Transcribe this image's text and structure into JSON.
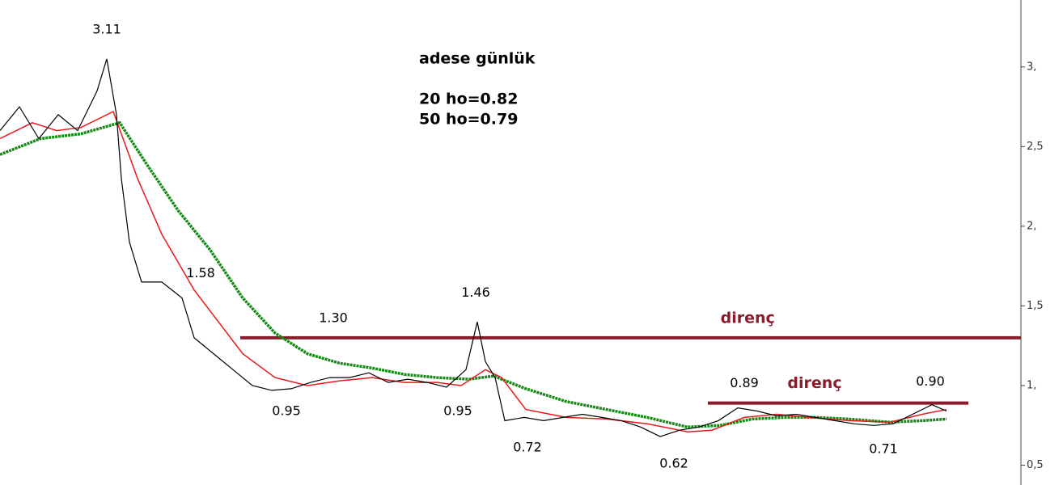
{
  "chart_data": {
    "type": "line",
    "title": "adese günlük",
    "info": [
      "20 ho=0.82",
      "50 ho=0.79"
    ],
    "xlim": [
      0,
      1262
    ],
    "ylim": [
      0.376,
      3.42
    ],
    "yticks": [
      {
        "value": 0.5,
        "label": "0,5"
      },
      {
        "value": 1,
        "label": "1,"
      },
      {
        "value": 1.5,
        "label": "1,5"
      },
      {
        "value": 2,
        "label": "2,"
      },
      {
        "value": 2.5,
        "label": "2,5"
      },
      {
        "value": 3,
        "label": "3,"
      }
    ],
    "series": [
      {
        "color": "#000000",
        "x": [
          0,
          24,
          48,
          72,
          96,
          120,
          132,
          144,
          150,
          160,
          175,
          200,
          225,
          240,
          264,
          288,
          312,
          336,
          360,
          384,
          408,
          432,
          456,
          480,
          504,
          528,
          552,
          576,
          590,
          600,
          612,
          624,
          648,
          672,
          696,
          720,
          744,
          768,
          792,
          816,
          840,
          864,
          888,
          912,
          936,
          960,
          984,
          1008,
          1032,
          1056,
          1080,
          1104,
          1128,
          1152,
          1170
        ],
        "values": [
          2.6,
          2.75,
          2.55,
          2.7,
          2.6,
          2.85,
          3.05,
          2.7,
          2.3,
          1.9,
          1.65,
          1.65,
          1.55,
          1.3,
          1.2,
          1.1,
          1.0,
          0.97,
          0.98,
          1.02,
          1.05,
          1.05,
          1.08,
          1.02,
          1.04,
          1.02,
          0.99,
          1.1,
          1.4,
          1.15,
          1.05,
          0.78,
          0.8,
          0.78,
          0.8,
          0.82,
          0.8,
          0.78,
          0.74,
          0.68,
          0.72,
          0.74,
          0.78,
          0.86,
          0.84,
          0.81,
          0.82,
          0.8,
          0.78,
          0.76,
          0.75,
          0.76,
          0.82,
          0.88,
          0.84
        ]
      },
      {
        "color": "#e8191a",
        "x": [
          0,
          40,
          70,
          100,
          140,
          170,
          200,
          240,
          270,
          300,
          340,
          380,
          420,
          460,
          500,
          540,
          570,
          600,
          620,
          650,
          700,
          750,
          800,
          850,
          880,
          920,
          960,
          1000,
          1050,
          1100,
          1140,
          1170
        ],
        "values": [
          2.55,
          2.65,
          2.6,
          2.62,
          2.72,
          2.3,
          1.95,
          1.6,
          1.4,
          1.2,
          1.05,
          1.0,
          1.03,
          1.05,
          1.02,
          1.02,
          1.0,
          1.1,
          1.05,
          0.85,
          0.8,
          0.79,
          0.76,
          0.71,
          0.72,
          0.8,
          0.82,
          0.8,
          0.78,
          0.77,
          0.82,
          0.85
        ]
      },
      {
        "color": "#138a13",
        "x": [
          0,
          50,
          100,
          148,
          180,
          220,
          260,
          300,
          340,
          380,
          420,
          460,
          500,
          540,
          580,
          610,
          650,
          700,
          750,
          800,
          850,
          890,
          930,
          970,
          1010,
          1050,
          1100,
          1140,
          1170
        ],
        "values": [
          2.45,
          2.55,
          2.58,
          2.65,
          2.4,
          2.1,
          1.85,
          1.55,
          1.33,
          1.2,
          1.14,
          1.11,
          1.07,
          1.05,
          1.04,
          1.06,
          0.98,
          0.9,
          0.85,
          0.8,
          0.74,
          0.75,
          0.79,
          0.8,
          0.8,
          0.79,
          0.77,
          0.78,
          0.79
        ]
      }
    ],
    "highs": [
      {
        "x": 132,
        "value": 3.11,
        "label": "3.11"
      },
      {
        "x": 248,
        "value": 1.58,
        "label": "1.58"
      },
      {
        "x": 412,
        "value": 1.3,
        "label": "1.30"
      },
      {
        "x": 588,
        "value": 1.46,
        "label": "1.46"
      },
      {
        "x": 920,
        "value": 0.89,
        "label": "0.89"
      },
      {
        "x": 1150,
        "value": 0.9,
        "label": "0.90"
      }
    ],
    "lows": [
      {
        "x": 354,
        "value": 0.95,
        "label": "0.95"
      },
      {
        "x": 566,
        "value": 0.95,
        "label": "0.95"
      },
      {
        "x": 652,
        "value": 0.72,
        "label": "0.72"
      },
      {
        "x": 833,
        "value": 0.62,
        "label": "0.62"
      },
      {
        "x": 1092,
        "value": 0.71,
        "label": "0.71"
      }
    ],
    "resistance_lines": [
      {
        "value": 1.3,
        "x_start": 297,
        "x_end": 1262,
        "label": "direnç",
        "color": "#8b1a2b"
      },
      {
        "value": 0.89,
        "x_start": 875,
        "x_end": 1197,
        "label": "direnç",
        "color": "#8b1a2b"
      }
    ]
  }
}
